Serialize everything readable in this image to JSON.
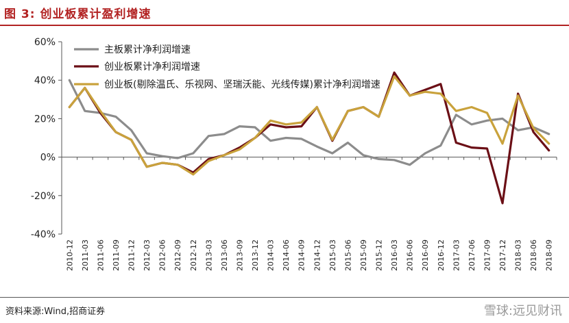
{
  "title": "图 3:  创业板累计盈利增速",
  "source": "资料来源:Wind,招商证券",
  "watermark": "雪球:远见财讯",
  "chart_data": {
    "type": "line",
    "title": "创业板累计盈利增速",
    "xlabel": "",
    "ylabel": "",
    "ylim": [
      -40,
      60
    ],
    "yticks": [
      "60%",
      "40%",
      "20%",
      "0%",
      "-20%",
      "-40%"
    ],
    "ytick_values": [
      60,
      40,
      20,
      0,
      -20,
      -40
    ],
    "grid": false,
    "legend_position": "top-left",
    "categories": [
      "2010-12",
      "2011-03",
      "2011-06",
      "2011-09",
      "2011-12",
      "2012-03",
      "2012-06",
      "2012-09",
      "2012-12",
      "2013-03",
      "2013-06",
      "2013-09",
      "2013-12",
      "2014-03",
      "2014-06",
      "2014-09",
      "2014-12",
      "2015-03",
      "2015-06",
      "2015-09",
      "2015-12",
      "2016-03",
      "2016-06",
      "2016-09",
      "2016-12",
      "2017-03",
      "2017-06",
      "2017-09",
      "2017-12",
      "2018-03",
      "2018-06",
      "2018-09"
    ],
    "series": [
      {
        "name": "主板累计净利润增速",
        "color": "#8c8c8c",
        "values": [
          40,
          24,
          23,
          21,
          14,
          2,
          0.5,
          -0.5,
          2,
          11,
          12,
          16,
          15.5,
          8.5,
          10,
          9.5,
          5.5,
          2,
          7.5,
          1,
          -1,
          -1.5,
          -4,
          2,
          6,
          22,
          17,
          19,
          20,
          14,
          15.5,
          12
        ]
      },
      {
        "name": "创业板累计净利润增速",
        "color": "#6b0f16",
        "values": [
          26,
          36,
          23,
          13,
          9,
          -5,
          -3,
          -4,
          -8,
          -1,
          1,
          5,
          10,
          17,
          15.5,
          16,
          26,
          8.5,
          24,
          26,
          21,
          44,
          32,
          35,
          38,
          7.5,
          5,
          4.5,
          -24,
          33,
          13,
          3.5
        ]
      },
      {
        "name": "创业板(剔除温氏、乐视网、坚瑞沃能、光线传媒)累计净利润增速",
        "color": "#c9a23c",
        "values": [
          26,
          36,
          24,
          13,
          9,
          -5,
          -3,
          -4,
          -9,
          -2,
          1,
          4,
          10,
          19,
          17,
          18,
          26,
          9,
          24,
          26,
          21,
          42,
          32,
          34,
          33,
          24,
          26,
          23,
          7,
          32,
          15,
          7
        ]
      }
    ]
  }
}
